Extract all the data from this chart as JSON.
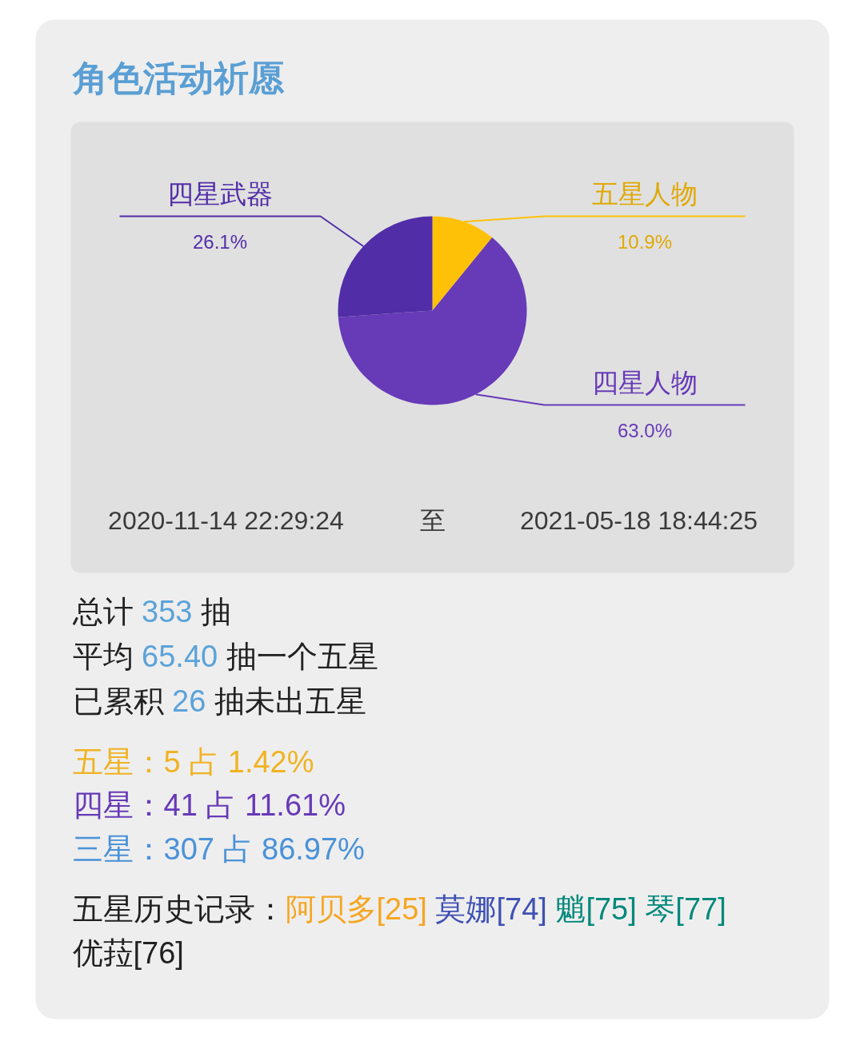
{
  "chart_data": {
    "type": "pie",
    "title": "角色活动祈愿",
    "categories": [
      "五星人物",
      "四星人物",
      "四星武器"
    ],
    "values": [
      10.9,
      63.0,
      26.1
    ],
    "colors": [
      "#ffc107",
      "#673ab7",
      "#512da8"
    ],
    "value_labels": [
      "10.9%",
      "63.0%",
      "26.1%"
    ],
    "annotations": [
      "2020-11-14 22:29:24",
      "至",
      "2021-05-18 18:44:25",
      "总计 353 抽",
      "平均 65.40 抽一个五星",
      "已累积 26 抽未出五星",
      "五星：5 占 1.42%",
      "四星：41 占 11.61%",
      "三星：307 占 86.97%",
      "五星历史记录：",
      "阿贝多[25] 莫娜[74] 魈[75] 琴[77] 优菈[76]"
    ]
  }
}
